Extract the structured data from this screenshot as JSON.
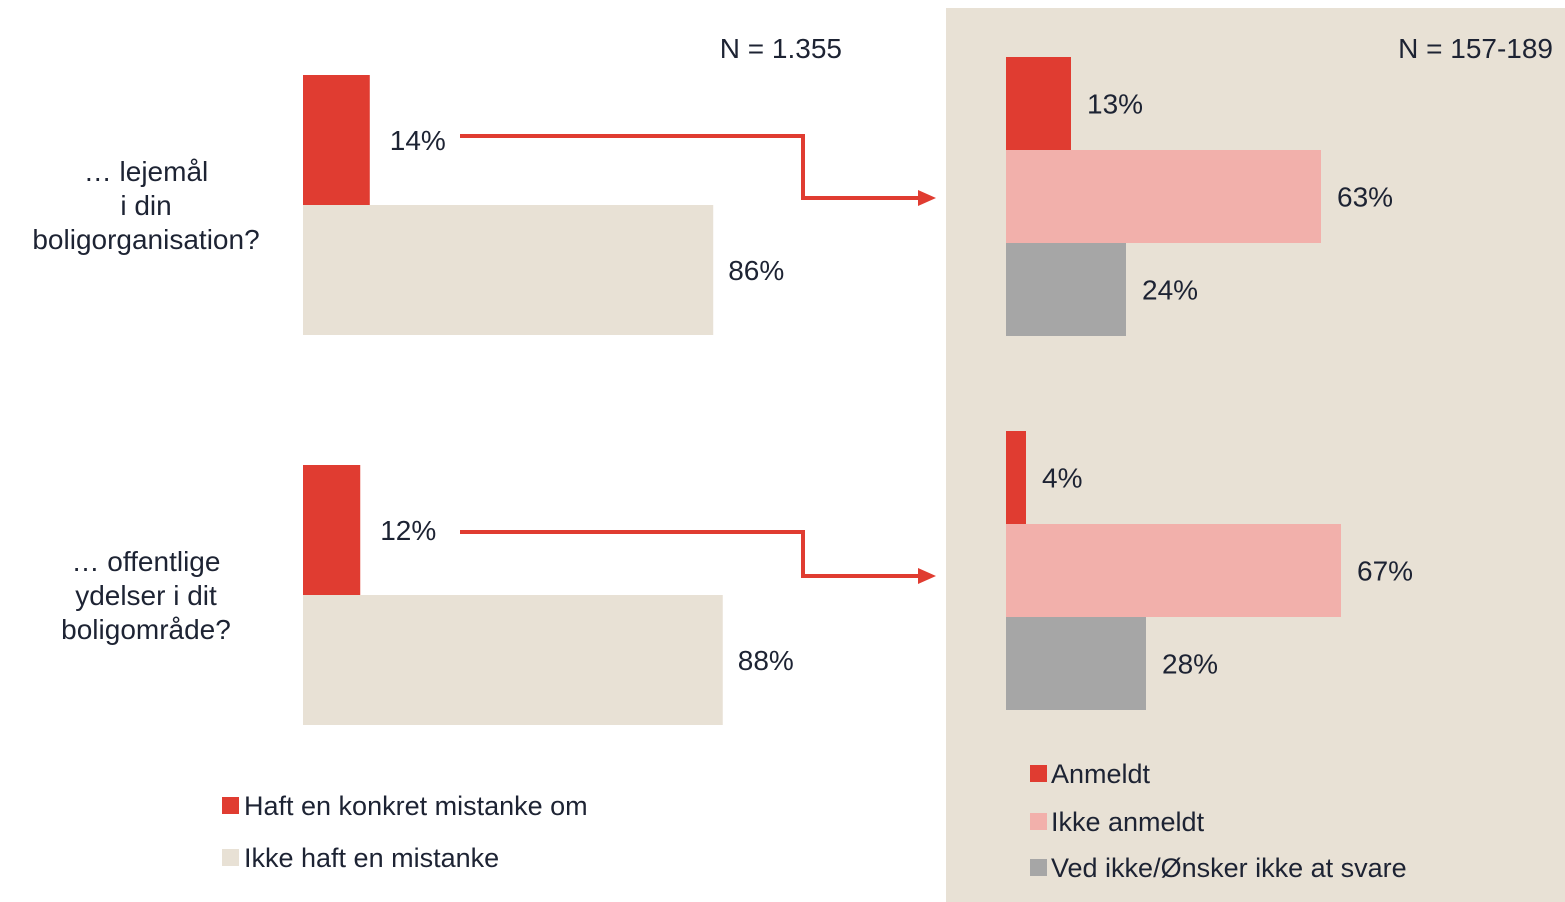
{
  "colors": {
    "red": "#e03c31",
    "pink": "#f2b0ab",
    "beige": "#e8e1d5",
    "gray": "#a6a6a6",
    "panel": "#e8e1d5",
    "text": "#1d2333"
  },
  "chart_data": [
    {
      "type": "bar",
      "orientation": "horizontal",
      "n_label": "N = 1.355",
      "categories": [
        "… lejemål\ni din\nboligorganisation?",
        "… offentlige\nydelser i dit\nboligområde?"
      ],
      "series": [
        {
          "name": "Haft en konkret mistanke om",
          "color": "#e03c31",
          "values": [
            14,
            12
          ]
        },
        {
          "name": "Ikke haft en mistanke",
          "color": "#e8e1d5",
          "values": [
            86,
            88
          ]
        }
      ],
      "value_labels": [
        [
          "14%",
          "86%"
        ],
        [
          "12%",
          "88%"
        ]
      ],
      "legend": "bottom"
    },
    {
      "type": "bar",
      "orientation": "horizontal",
      "n_label": "N = 157-189",
      "groups": [
        {
          "values": [
            13,
            63,
            24
          ],
          "labels": [
            "13%",
            "63%",
            "24%"
          ]
        },
        {
          "values": [
            4,
            67,
            28
          ],
          "labels": [
            "4%",
            "67%",
            "28%"
          ]
        }
      ],
      "series": [
        {
          "name": "Anmeldt",
          "color": "#e03c31"
        },
        {
          "name": "Ikke anmeldt",
          "color": "#f2b0ab"
        },
        {
          "name": "Ved ikke/Ønsker ikke at svare",
          "color": "#a6a6a6"
        }
      ],
      "legend": "bottom"
    }
  ]
}
